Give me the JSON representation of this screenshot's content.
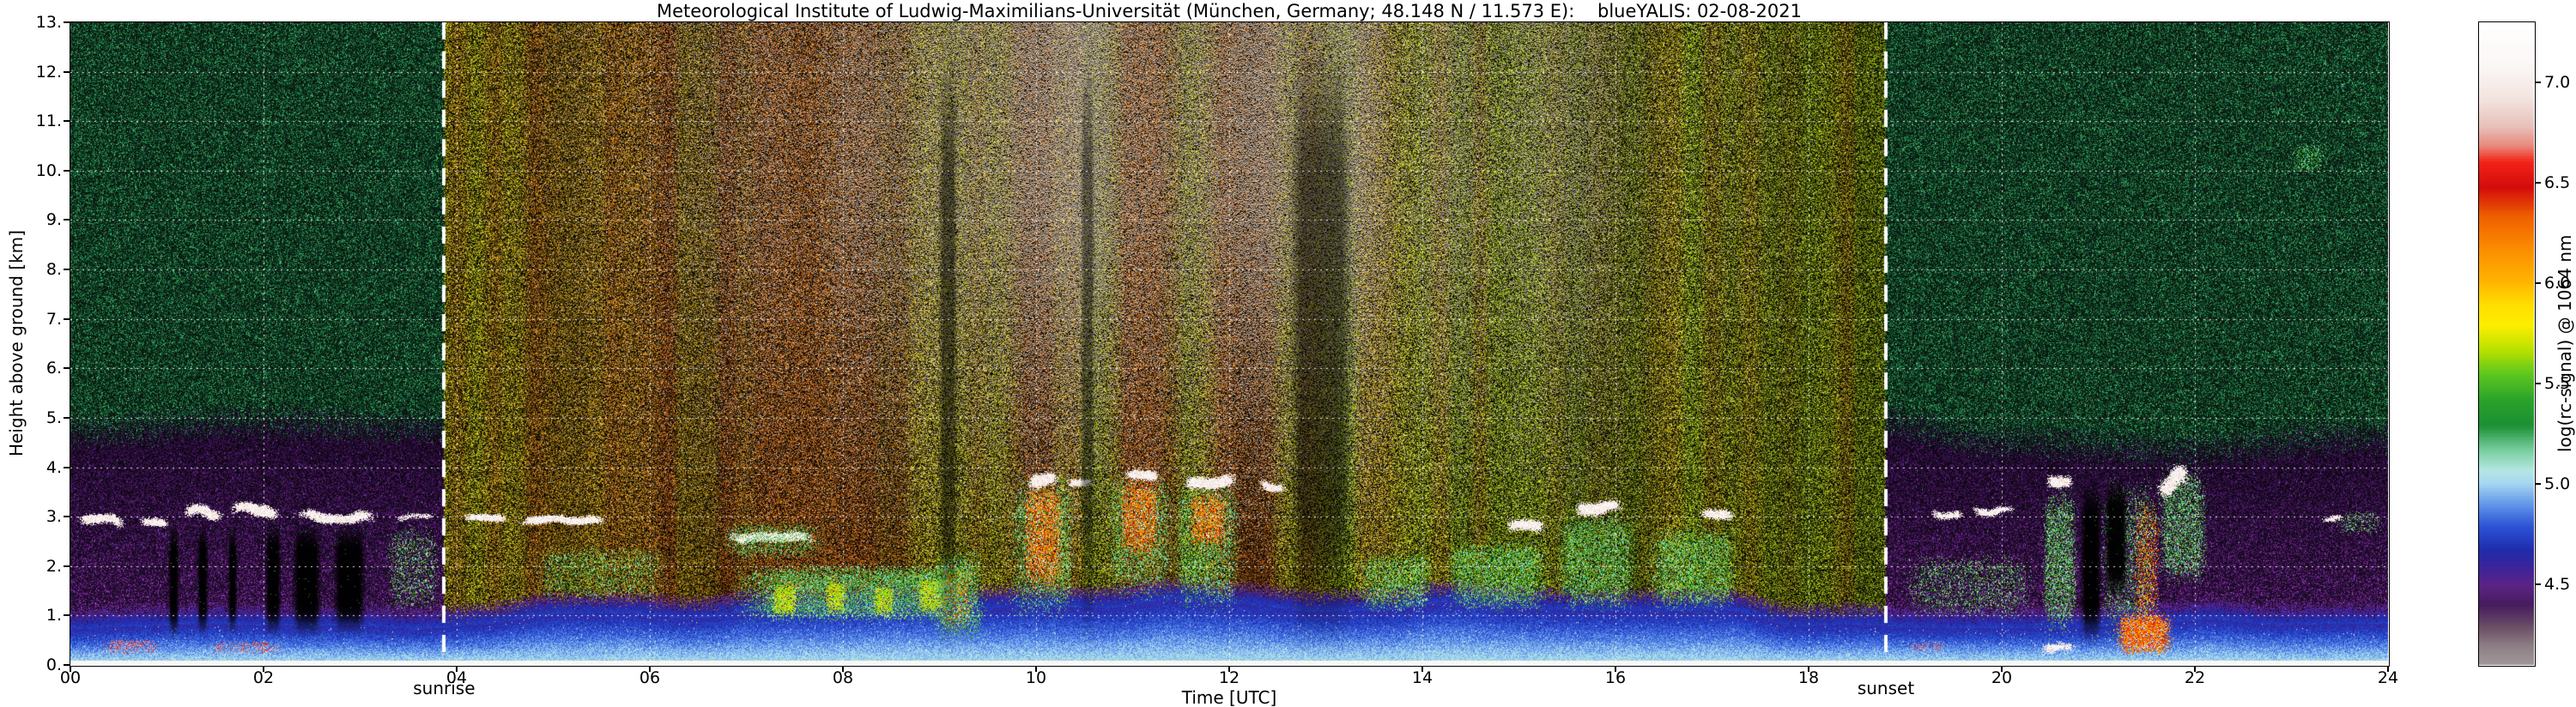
{
  "title": "Meteorological Institute of Ludwig-Maximilians-Universität (München, Germany; 48.148 N / 11.573 E):    blueYALIS: 02-08-2021",
  "colors": {
    "background": "#ffffff",
    "axis_text": "#000000",
    "grid_line": "#ffffff",
    "twilight_line": "#ffffff"
  },
  "chart_data": {
    "type": "heatmap",
    "title": "Meteorological Institute of Ludwig-Maximilians-Universität (München, Germany; 48.148 N / 11.573 E):    blueYALIS: 02-08-2021",
    "xlabel": "Time [UTC]",
    "ylabel": "Height above ground [km]",
    "colorbar_label": "log(rc-signal) @ 1064 nm",
    "x_range_hours": [
      0,
      24
    ],
    "y_range_km": [
      0,
      13
    ],
    "x_ticks": [
      "00",
      "02",
      "04",
      "06",
      "08",
      "10",
      "12",
      "14",
      "16",
      "18",
      "20",
      "22",
      "24"
    ],
    "y_ticks": [
      "0.",
      "1.",
      "2.",
      "3.",
      "4.",
      "5.",
      "6.",
      "7.",
      "8.",
      "9.",
      "10.",
      "11.",
      "12.",
      "13."
    ],
    "colorbar_ticks": [
      {
        "label": "7.0",
        "value": 7.0
      },
      {
        "label": "6.5",
        "value": 6.5
      },
      {
        "label": "6.0",
        "value": 6.0
      },
      {
        "label": "5.5",
        "value": 5.5
      },
      {
        "label": "5.0",
        "value": 5.0
      },
      {
        "label": "4.5",
        "value": 4.5
      }
    ],
    "value_range": [
      4.1,
      7.3
    ],
    "grid": {
      "x_step_hours": 2,
      "y_step_km": 1,
      "style": "white-dotted"
    },
    "annotations": [
      {
        "label": "sunrise",
        "time_utc": 3.87
      },
      {
        "label": "sunset",
        "time_utc": 18.8
      }
    ],
    "colormap_stops": [
      [
        0.0,
        "#ffffff"
      ],
      [
        0.07,
        "#faf6f4"
      ],
      [
        0.12,
        "#f2e2dd"
      ],
      [
        0.16,
        "#e7c0b8"
      ],
      [
        0.19,
        "#e98a7e"
      ],
      [
        0.215,
        "#f32317"
      ],
      [
        0.255,
        "#d40c0c"
      ],
      [
        0.3,
        "#ee5f00"
      ],
      [
        0.35,
        "#fb8c00"
      ],
      [
        0.4,
        "#ffb300"
      ],
      [
        0.44,
        "#ffdf00"
      ],
      [
        0.47,
        "#fdee00"
      ],
      [
        0.51,
        "#b5e000"
      ],
      [
        0.545,
        "#5ec81e"
      ],
      [
        0.585,
        "#2ba32a"
      ],
      [
        0.625,
        "#1b8f33"
      ],
      [
        0.665,
        "#79cfa0"
      ],
      [
        0.695,
        "#b5e6e2"
      ],
      [
        0.715,
        "#a8d9f2"
      ],
      [
        0.75,
        "#5f93e8"
      ],
      [
        0.785,
        "#2b50d4"
      ],
      [
        0.82,
        "#1e2cab"
      ],
      [
        0.85,
        "#3f2398"
      ],
      [
        0.875,
        "#5b2486"
      ],
      [
        0.905,
        "#471b5e"
      ],
      [
        0.94,
        "#6b4f66"
      ],
      [
        0.97,
        "#8d7f85"
      ],
      [
        1.0,
        "#a29a9e"
      ]
    ],
    "features": [
      {
        "type": "cloud",
        "t0": 0.05,
        "t1": 0.6,
        "h0": 2.7,
        "h1": 3.1,
        "density": 0.85
      },
      {
        "type": "cloud",
        "t0": 0.7,
        "t1": 1.05,
        "h0": 2.75,
        "h1": 3.05,
        "density": 0.8
      },
      {
        "type": "cloud",
        "t0": 1.15,
        "t1": 1.6,
        "h0": 2.85,
        "h1": 3.3,
        "density": 0.85
      },
      {
        "type": "cloud",
        "t0": 1.65,
        "t1": 2.2,
        "h0": 2.9,
        "h1": 3.35,
        "density": 0.9
      },
      {
        "type": "cloud",
        "t0": 2.3,
        "t1": 3.2,
        "h0": 2.8,
        "h1": 3.2,
        "density": 0.85
      },
      {
        "type": "plume",
        "t0": 3.25,
        "t1": 3.85,
        "h0": 1.0,
        "h1": 2.9,
        "density": 0.3
      },
      {
        "type": "cloud",
        "t0": 3.35,
        "t1": 3.8,
        "h0": 2.85,
        "h1": 3.1,
        "density": 0.6
      },
      {
        "type": "black",
        "t0": 1.0,
        "t1": 1.14,
        "h0": 0.45,
        "h1": 2.95
      },
      {
        "type": "black",
        "t0": 1.3,
        "t1": 1.44,
        "h0": 0.5,
        "h1": 2.95
      },
      {
        "type": "black",
        "t0": 1.62,
        "t1": 1.74,
        "h0": 0.55,
        "h1": 2.9
      },
      {
        "type": "black",
        "t0": 2.0,
        "t1": 2.2,
        "h0": 0.5,
        "h1": 3.0
      },
      {
        "type": "black",
        "t0": 2.28,
        "t1": 2.62,
        "h0": 0.5,
        "h1": 3.0
      },
      {
        "type": "black",
        "t0": 2.7,
        "t1": 3.08,
        "h0": 0.55,
        "h1": 2.95
      },
      {
        "type": "pink",
        "t0": 0.3,
        "t1": 0.95,
        "h0": 0.2,
        "h1": 0.55,
        "density": 0.5
      },
      {
        "type": "pink",
        "t0": 1.4,
        "t1": 2.25,
        "h0": 0.2,
        "h1": 0.5,
        "density": 0.45
      },
      {
        "type": "pink",
        "t0": 19.0,
        "t1": 19.45,
        "h0": 0.25,
        "h1": 0.5,
        "density": 0.4
      },
      {
        "type": "cloud",
        "t0": 4.05,
        "t1": 4.55,
        "h0": 2.8,
        "h1": 3.1,
        "density": 0.8
      },
      {
        "type": "cloud",
        "t0": 4.6,
        "t1": 5.6,
        "h0": 2.78,
        "h1": 3.08,
        "density": 0.85
      },
      {
        "type": "plume",
        "t0": 4.75,
        "t1": 6.25,
        "h0": 1.25,
        "h1": 2.45,
        "density": 0.3
      },
      {
        "type": "cloud",
        "t0": 6.75,
        "t1": 7.75,
        "h0": 2.4,
        "h1": 2.78,
        "density": 0.75
      },
      {
        "type": "plume",
        "t0": 6.7,
        "t1": 7.85,
        "h0": 2.1,
        "h1": 2.95,
        "density": 0.35
      },
      {
        "type": "plume",
        "t0": 6.8,
        "t1": 9.45,
        "h0": 0.8,
        "h1": 2.1,
        "density": 0.65
      },
      {
        "type": "yellow",
        "t0": 7.25,
        "t1": 7.55,
        "h0": 0.95,
        "h1": 1.7,
        "density": 0.75
      },
      {
        "type": "yellow",
        "t0": 7.8,
        "t1": 8.05,
        "h0": 1.0,
        "h1": 1.75,
        "density": 0.7
      },
      {
        "type": "yellow",
        "t0": 8.3,
        "t1": 8.55,
        "h0": 0.95,
        "h1": 1.65,
        "density": 0.7
      },
      {
        "type": "yellow",
        "t0": 8.75,
        "t1": 9.1,
        "h0": 1.0,
        "h1": 1.8,
        "density": 0.7
      },
      {
        "type": "redcell",
        "t0": 9.0,
        "t1": 9.35,
        "h0": 0.6,
        "h1": 2.1,
        "density": 0.45
      },
      {
        "type": "plume",
        "t0": 8.9,
        "t1": 9.5,
        "h0": 0.4,
        "h1": 2.4,
        "density": 0.5
      },
      {
        "type": "plume",
        "t0": 9.7,
        "t1": 10.45,
        "h0": 0.8,
        "h1": 4.0,
        "density": 0.45
      },
      {
        "type": "redcell",
        "t0": 9.85,
        "t1": 10.3,
        "h0": 1.4,
        "h1": 3.85,
        "density": 0.6
      },
      {
        "type": "cloud",
        "t0": 9.9,
        "t1": 10.25,
        "h0": 3.45,
        "h1": 3.95,
        "density": 0.9
      },
      {
        "type": "cloud",
        "t0": 10.3,
        "t1": 10.6,
        "h0": 3.55,
        "h1": 3.85,
        "density": 0.7
      },
      {
        "type": "plume",
        "t0": 10.7,
        "t1": 11.45,
        "h0": 1.2,
        "h1": 4.0,
        "density": 0.45
      },
      {
        "type": "redcell",
        "t0": 10.85,
        "t1": 11.3,
        "h0": 2.1,
        "h1": 3.9,
        "density": 0.6
      },
      {
        "type": "cloud",
        "t0": 10.9,
        "t1": 11.3,
        "h0": 3.6,
        "h1": 4.0,
        "density": 0.85
      },
      {
        "type": "plume",
        "t0": 11.4,
        "t1": 12.15,
        "h0": 1.0,
        "h1": 3.9,
        "density": 0.45
      },
      {
        "type": "redcell",
        "t0": 11.55,
        "t1": 12.0,
        "h0": 2.3,
        "h1": 3.6,
        "density": 0.6
      },
      {
        "type": "cloud",
        "t0": 11.5,
        "t1": 12.1,
        "h0": 3.5,
        "h1": 3.95,
        "density": 0.9
      },
      {
        "type": "cloud",
        "t0": 12.3,
        "t1": 12.6,
        "h0": 3.45,
        "h1": 3.8,
        "density": 0.75
      },
      {
        "type": "plume",
        "t0": 13.3,
        "t1": 14.15,
        "h0": 1.0,
        "h1": 2.35,
        "density": 0.45
      },
      {
        "type": "plume",
        "t0": 14.2,
        "t1": 15.35,
        "h0": 1.0,
        "h1": 2.6,
        "density": 0.5
      },
      {
        "type": "cloud",
        "t0": 14.85,
        "t1": 15.3,
        "h0": 2.55,
        "h1": 3.0,
        "density": 0.8
      },
      {
        "type": "plume",
        "t0": 15.35,
        "t1": 16.25,
        "h0": 1.0,
        "h1": 3.2,
        "density": 0.5
      },
      {
        "type": "cloud",
        "t0": 15.55,
        "t1": 16.1,
        "h0": 2.9,
        "h1": 3.4,
        "density": 0.85
      },
      {
        "type": "plume",
        "t0": 16.3,
        "t1": 17.3,
        "h0": 1.0,
        "h1": 2.9,
        "density": 0.5
      },
      {
        "type": "cloud",
        "t0": 16.85,
        "t1": 17.25,
        "h0": 2.75,
        "h1": 3.2,
        "density": 0.8
      },
      {
        "type": "darkband",
        "t0": 8.98,
        "t1": 9.2,
        "h0": 0,
        "h1": 13,
        "density": 0.5
      },
      {
        "type": "darkband",
        "t0": 10.45,
        "t1": 10.62,
        "h0": 0,
        "h1": 13,
        "density": 0.45
      },
      {
        "type": "darkband",
        "t0": 12.6,
        "t1": 13.3,
        "h0": 0,
        "h1": 13,
        "density": 0.5
      },
      {
        "type": "plume",
        "t0": 18.95,
        "t1": 20.4,
        "h0": 0.9,
        "h1": 2.3,
        "density": 0.28
      },
      {
        "type": "cloud",
        "t0": 19.25,
        "t1": 19.62,
        "h0": 2.9,
        "h1": 3.2,
        "density": 0.7
      },
      {
        "type": "cloud",
        "t0": 19.68,
        "t1": 20.15,
        "h0": 2.95,
        "h1": 3.25,
        "density": 0.75
      },
      {
        "type": "plume",
        "t0": 20.4,
        "t1": 20.8,
        "h0": 0.5,
        "h1": 3.7,
        "density": 0.55
      },
      {
        "type": "cloud",
        "t0": 20.45,
        "t1": 20.75,
        "h0": 3.5,
        "h1": 3.95,
        "density": 0.8
      },
      {
        "type": "cloud",
        "t0": 20.4,
        "t1": 20.78,
        "h0": 0.08,
        "h1": 0.5,
        "density": 0.7
      },
      {
        "type": "black",
        "t0": 20.8,
        "t1": 21.05,
        "h0": 0.3,
        "h1": 3.9
      },
      {
        "type": "plume",
        "t0": 21.0,
        "t1": 21.65,
        "h0": 0.3,
        "h1": 3.9,
        "density": 0.3
      },
      {
        "type": "black",
        "t0": 21.05,
        "t1": 21.32,
        "h0": 1.2,
        "h1": 3.9
      },
      {
        "type": "redcell",
        "t0": 21.15,
        "t1": 21.8,
        "h0": 0.15,
        "h1": 1.1,
        "density": 0.9
      },
      {
        "type": "redcell",
        "t0": 21.35,
        "t1": 21.65,
        "h0": 0.5,
        "h1": 3.5,
        "density": 0.35
      },
      {
        "type": "plume",
        "t0": 21.6,
        "t1": 22.15,
        "h0": 1.5,
        "h1": 4.1,
        "density": 0.5
      },
      {
        "type": "cloud",
        "t0": 21.6,
        "t1": 21.95,
        "h0": 3.3,
        "h1": 4.15,
        "density": 0.8
      },
      {
        "type": "cloud",
        "t0": 23.3,
        "t1": 23.55,
        "h0": 2.85,
        "h1": 3.1,
        "density": 0.6
      },
      {
        "type": "plume",
        "t0": 23.45,
        "t1": 23.95,
        "h0": 2.6,
        "h1": 3.15,
        "density": 0.25
      },
      {
        "type": "plume",
        "t0": 23.0,
        "t1": 23.35,
        "h0": 9.9,
        "h1": 10.6,
        "density": 0.3
      }
    ]
  }
}
